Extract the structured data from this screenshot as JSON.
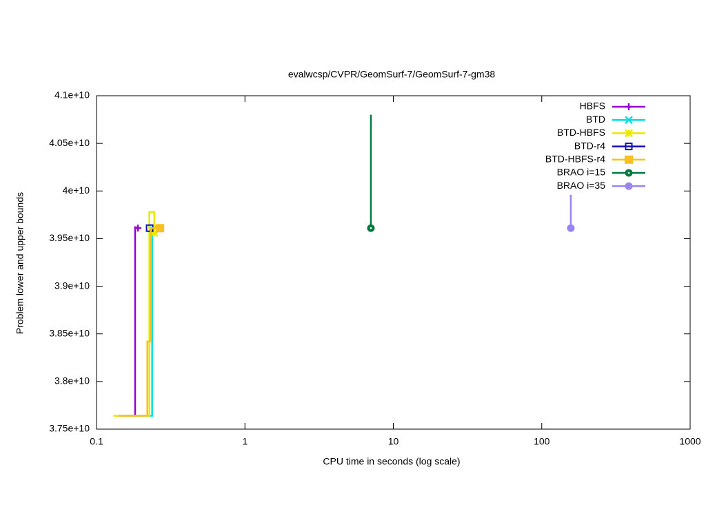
{
  "chart_data": {
    "type": "line",
    "title": "evalwcsp/CVPR/GeomSurf-7/GeomSurf-7-gm38",
    "x_label": "CPU time in seconds (log scale)",
    "y_label": "Problem lower and upper bounds",
    "xscale": "log",
    "xlim": [
      0.1,
      1000
    ],
    "xticks": [
      0.1,
      1,
      10,
      100,
      1000
    ],
    "ylim": [
      37500000000,
      41000000000
    ],
    "yticks": [
      {
        "value": 37500000000,
        "label": "3.75e+10"
      },
      {
        "value": 38000000000,
        "label": "3.8e+10"
      },
      {
        "value": 38500000000,
        "label": "3.85e+10"
      },
      {
        "value": 39000000000,
        "label": "3.9e+10"
      },
      {
        "value": 39500000000,
        "label": "3.95e+10"
      },
      {
        "value": 40000000000,
        "label": "4e+10"
      },
      {
        "value": 40500000000,
        "label": "4.05e+10"
      },
      {
        "value": 41000000000,
        "label": "4.1e+10"
      }
    ],
    "legend": "top right",
    "series": [
      {
        "name": "HBFS",
        "color": "#9400d3",
        "marker": "plus",
        "x": [
          0.16,
          0.182,
          0.182,
          0.19
        ],
        "values": [
          37640000000,
          37640000000,
          39620000000,
          39610000000
        ]
      },
      {
        "name": "BTD",
        "color": "#00e0e0",
        "marker": "cross",
        "x": [
          0.15,
          0.237,
          0.237
        ],
        "values": [
          37640000000,
          37640000000,
          39600000000
        ]
      },
      {
        "name": "BTD-HBFS",
        "color": "#e8e800",
        "marker": "star",
        "x": [
          0.13,
          0.227,
          0.227,
          0.245,
          0.245
        ],
        "values": [
          37640000000,
          37640000000,
          39780000000,
          39780000000,
          39560000000
        ]
      },
      {
        "name": "BTD-r4",
        "color": "#1010b0",
        "marker": "square-open",
        "x": [
          0.228
        ],
        "values": [
          39610000000
        ]
      },
      {
        "name": "BTD-HBFS-r4",
        "color": "#f8c020",
        "marker": "square",
        "x": [
          0.14,
          0.22,
          0.22,
          0.232,
          0.232,
          0.268
        ],
        "values": [
          37640000000,
          37640000000,
          38420000000,
          38420000000,
          39610000000,
          39610000000
        ]
      },
      {
        "name": "BRAO i=15",
        "color": "#007840",
        "marker": "circle-dot",
        "x": [
          7.06,
          7.06
        ],
        "values": [
          40800000000,
          39610000000
        ]
      },
      {
        "name": "BRAO i=35",
        "color": "#9a85f0",
        "marker": "circle",
        "x": [
          157,
          157
        ],
        "values": [
          39960000000,
          39610000000
        ]
      }
    ]
  }
}
